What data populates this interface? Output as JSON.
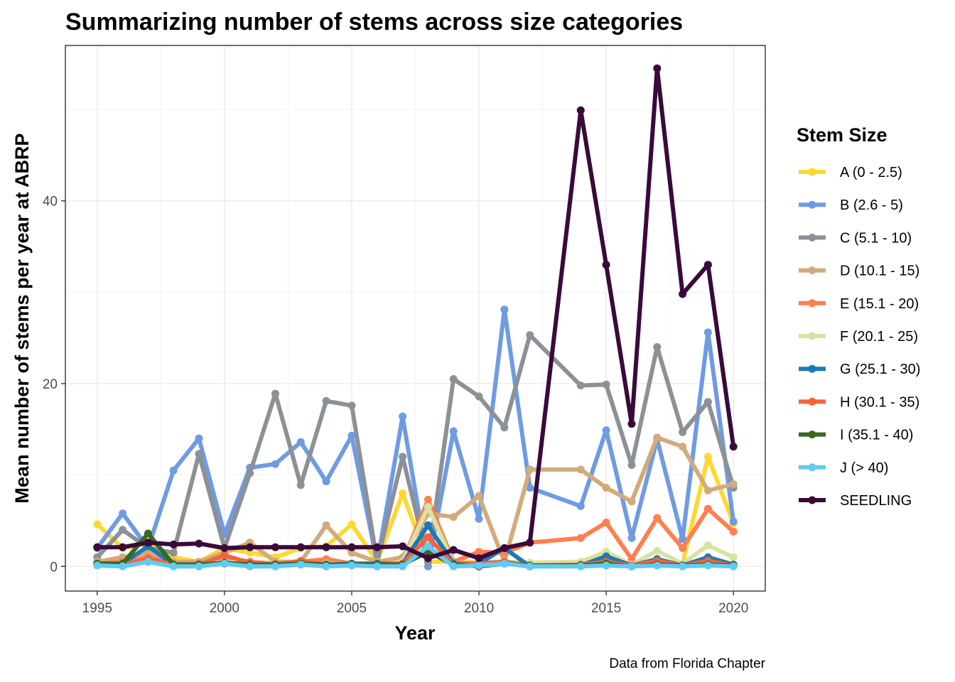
{
  "chart_data": {
    "type": "line",
    "title": "Summarizing number of stems across size categories",
    "xlabel": "Year",
    "ylabel": "Mean number of stems per year at ABRP",
    "caption": "Data from Florida Chapter",
    "xlim": [
      1993.75,
      2021.25
    ],
    "ylim": [
      -2.7,
      57
    ],
    "x_ticks": [
      1995,
      2000,
      2005,
      2010,
      2015,
      2020
    ],
    "y_ticks": [
      0,
      20,
      40
    ],
    "grid": true,
    "legend": {
      "title": "Stem Size",
      "position": "right"
    },
    "x": [
      1995,
      1996,
      1997,
      1998,
      1999,
      2000,
      2001,
      2002,
      2003,
      2004,
      2005,
      2006,
      2007,
      2008,
      2009,
      2010,
      2011,
      2012,
      2014,
      2015,
      2016,
      2017,
      2018,
      2019,
      2020
    ],
    "series": [
      {
        "name": "A (0 - 2.5)",
        "color": "#FDD835",
        "values": [
          4.6,
          2.0,
          2.5,
          1.0,
          0.5,
          2.0,
          1.5,
          1.0,
          2.0,
          2.2,
          4.6,
          0.5,
          8.0,
          0.5,
          0.5,
          0.5,
          0.5,
          0.3,
          0.3,
          0.3,
          0.2,
          0.4,
          0.3,
          12.0,
          4.7
        ]
      },
      {
        "name": "B (2.6 - 5)",
        "color": "#6F9BE3",
        "values": [
          2.0,
          5.8,
          2.0,
          10.5,
          14.0,
          3.5,
          10.8,
          11.2,
          13.6,
          9.3,
          14.3,
          0.4,
          16.4,
          0.0,
          14.8,
          5.2,
          28.1,
          8.6,
          6.6,
          14.9,
          3.1,
          13.9,
          3.0,
          25.6,
          4.9
        ]
      },
      {
        "name": "C (5.1 - 10)",
        "color": "#8C9196",
        "values": [
          1.0,
          4.0,
          2.0,
          1.5,
          12.3,
          2.0,
          10.2,
          18.9,
          8.9,
          18.1,
          17.6,
          0.5,
          12.0,
          0.5,
          20.5,
          18.6,
          15.2,
          25.3,
          19.8,
          19.9,
          11.1,
          24.0,
          14.7,
          18.0,
          8.6
        ]
      },
      {
        "name": "D (10.1 - 15)",
        "color": "#D2AB7C",
        "values": [
          0.5,
          1.0,
          1.5,
          0.5,
          0.5,
          1.5,
          2.6,
          0.5,
          0.5,
          4.5,
          1.5,
          0.5,
          1.0,
          5.8,
          5.4,
          7.7,
          0.5,
          10.6,
          10.6,
          8.6,
          7.1,
          14.1,
          13.1,
          8.3,
          9.0
        ]
      },
      {
        "name": "E (15.1 - 20)",
        "color": "#FF7F50",
        "values": [
          0.3,
          0.5,
          1.0,
          0.3,
          0.3,
          1.0,
          0.5,
          0.3,
          0.5,
          0.8,
          0.3,
          0.3,
          0.5,
          7.3,
          0.5,
          1.6,
          1.5,
          2.6,
          3.1,
          4.8,
          0.8,
          5.3,
          2.0,
          6.3,
          3.8
        ]
      },
      {
        "name": "F (20.1 - 25)",
        "color": "#D7E3A1",
        "values": [
          0.2,
          0.3,
          0.5,
          0.2,
          0.2,
          0.5,
          0.3,
          0.2,
          0.3,
          0.3,
          0.2,
          0.2,
          0.5,
          6.5,
          0.3,
          0.5,
          0.5,
          0.4,
          0.5,
          1.6,
          0.2,
          1.7,
          0.3,
          2.3,
          1.0
        ]
      },
      {
        "name": "G (25.1 - 30)",
        "color": "#1F78B4",
        "values": [
          0.3,
          0.3,
          2.2,
          0.2,
          0.2,
          0.3,
          0.2,
          0.2,
          0.3,
          0.2,
          0.3,
          0.3,
          0.3,
          4.5,
          0.3,
          0.3,
          2.0,
          0.0,
          0.1,
          1.1,
          0.1,
          0.8,
          0.1,
          1.0,
          0.2
        ]
      },
      {
        "name": "H (30.1 - 35)",
        "color": "#F4633B",
        "values": [
          0.2,
          0.2,
          0.8,
          0.2,
          0.2,
          1.2,
          0.4,
          0.2,
          0.6,
          0.2,
          0.2,
          0.2,
          0.3,
          3.2,
          0.2,
          0.3,
          0.5,
          0.1,
          0.2,
          0.5,
          0.1,
          0.6,
          0.1,
          0.6,
          0.1
        ]
      },
      {
        "name": "I (35.1 - 40)",
        "color": "#38691F",
        "values": [
          0.3,
          0.3,
          3.6,
          0.2,
          0.2,
          0.4,
          0.2,
          0.2,
          0.3,
          0.2,
          0.2,
          0.2,
          0.2,
          1.6,
          0.2,
          0.0,
          0.3,
          0.1,
          0.1,
          0.3,
          0.0,
          0.2,
          0.1,
          0.2,
          0.1
        ]
      },
      {
        "name": "J (> 40)",
        "color": "#63CAF2",
        "values": [
          0.1,
          0.0,
          0.5,
          0.0,
          0.0,
          0.3,
          0.0,
          0.0,
          0.2,
          0.0,
          0.1,
          0.0,
          0.0,
          2.2,
          0.0,
          0.1,
          0.3,
          0.0,
          0.0,
          0.1,
          0.0,
          0.1,
          0.0,
          0.1,
          0.0
        ]
      },
      {
        "name": "SEEDLING",
        "color": "#3A0A3A",
        "values": [
          2.1,
          2.1,
          2.6,
          2.4,
          2.5,
          2.0,
          2.1,
          2.1,
          2.1,
          2.1,
          2.1,
          2.1,
          2.2,
          0.9,
          1.8,
          0.9,
          2.0,
          2.6,
          49.9,
          33.0,
          15.6,
          54.5,
          29.8,
          33.0,
          13.1
        ]
      }
    ]
  }
}
